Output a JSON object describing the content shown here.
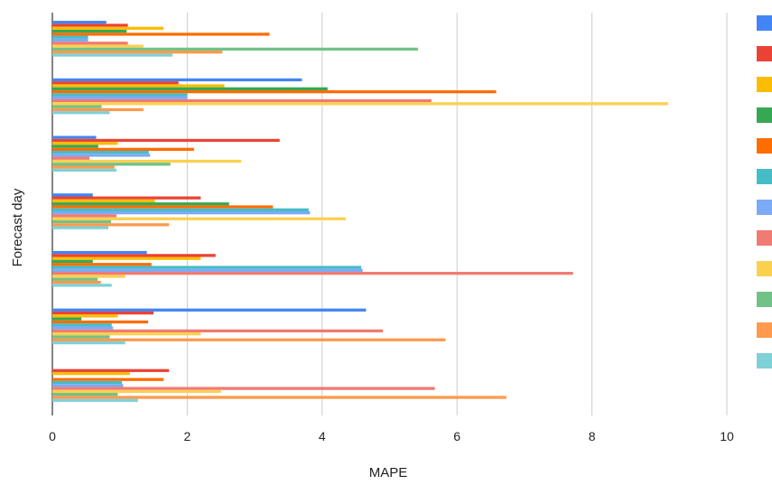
{
  "chart_data": {
    "type": "bar",
    "orientation": "horizontal",
    "title": "",
    "xlabel": "MAPE",
    "ylabel": "Forecast day",
    "xlim": [
      0,
      10
    ],
    "x_ticks": [
      0,
      2,
      4,
      6,
      8,
      10
    ],
    "grid": true,
    "legend": "right",
    "groups": 7,
    "series": [
      {
        "color": "#4285F4",
        "values": [
          0.8,
          3.7,
          0.65,
          0.6,
          1.4,
          4.65,
          0
        ]
      },
      {
        "color": "#EA4335",
        "values": [
          1.12,
          1.87,
          3.37,
          2.2,
          2.42,
          1.5,
          1.73
        ]
      },
      {
        "color": "#FBBC04",
        "values": [
          1.65,
          2.55,
          0.97,
          1.52,
          2.2,
          0.97,
          1.15
        ]
      },
      {
        "color": "#34A853",
        "values": [
          1.1,
          4.08,
          0.68,
          2.62,
          0.6,
          0.43,
          0
        ]
      },
      {
        "color": "#FF6D01",
        "values": [
          3.22,
          6.58,
          2.1,
          3.27,
          1.47,
          1.42,
          1.65
        ]
      },
      {
        "color": "#46BDC6",
        "values": [
          0.53,
          2.0,
          1.43,
          3.8,
          4.58,
          0.88,
          1.03
        ]
      },
      {
        "color": "#7BAAF7",
        "values": [
          0.53,
          2.0,
          1.45,
          3.82,
          4.6,
          0.9,
          1.05
        ]
      },
      {
        "color": "#F07B72",
        "values": [
          1.12,
          5.62,
          0.55,
          0.95,
          7.72,
          4.9,
          5.67
        ]
      },
      {
        "color": "#FCD04F",
        "values": [
          1.35,
          9.13,
          2.8,
          4.35,
          1.08,
          2.2,
          2.5
        ]
      },
      {
        "color": "#71C287",
        "values": [
          5.42,
          0.73,
          1.75,
          0.87,
          0.67,
          0.85,
          0.97
        ]
      },
      {
        "color": "#FF994D",
        "values": [
          2.52,
          1.35,
          0.92,
          1.73,
          0.72,
          5.83,
          6.73
        ]
      },
      {
        "color": "#7ED1D7",
        "values": [
          1.78,
          0.85,
          0.95,
          0.83,
          0.88,
          1.08,
          1.27
        ]
      }
    ]
  }
}
